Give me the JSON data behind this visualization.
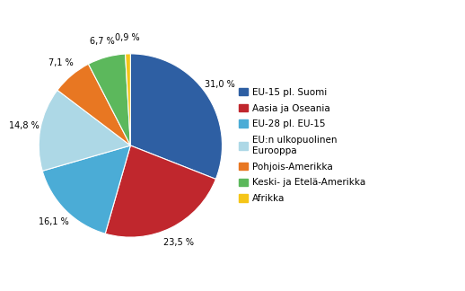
{
  "labels": [
    "EU-15 pl. Suomi",
    "Aasia ja Oseania",
    "EU-28 pl. EU-15",
    "EU:n ulkopuolinen\nEurooppa",
    "Pohjois-Amerikka",
    "Keski- ja Etelä-Amerikka",
    "Afrikka"
  ],
  "values": [
    31.0,
    23.5,
    16.1,
    14.8,
    7.1,
    6.7,
    0.9
  ],
  "colors": [
    "#2E5FA3",
    "#C0272D",
    "#4BACD6",
    "#ADD8E6",
    "#E87722",
    "#5CB85C",
    "#F5C518"
  ],
  "pct_labels": [
    "31,0 %",
    "23,5 %",
    "16,1 %",
    "14,8 %",
    "7,1 %",
    "6,7 %",
    "0,9 %"
  ],
  "legend_labels": [
    "EU-15 pl. Suomi",
    "Aasia ja Oseania",
    "EU-28 pl. EU-15",
    "EU:n ulkopuolinen\nEurooppa",
    "Pohjois-Amerikka",
    "Keski- ja Etelä-Amerikka",
    "Afrikka"
  ],
  "background_color": "#FFFFFF",
  "startangle": 90
}
